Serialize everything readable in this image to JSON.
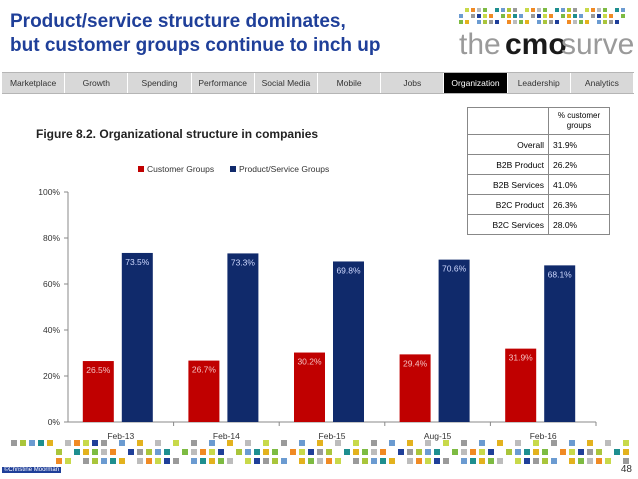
{
  "header": {
    "title_line1": "Product/service structure dominates,",
    "title_line2": "but customer groups continue to inch up",
    "logo_prefix": "the",
    "logo_bold": "cmo",
    "logo_suffix": "survey"
  },
  "nav": {
    "items": [
      {
        "label": "Marketplace",
        "active": false
      },
      {
        "label": "Growth",
        "active": false
      },
      {
        "label": "Spending",
        "active": false
      },
      {
        "label": "Performance",
        "active": false
      },
      {
        "label": "Social Media",
        "active": false
      },
      {
        "label": "Mobile",
        "active": false
      },
      {
        "label": "Jobs",
        "active": false
      },
      {
        "label": "Organization",
        "active": true
      },
      {
        "label": "Leadership",
        "active": false
      },
      {
        "label": "Analytics",
        "active": false
      }
    ]
  },
  "figure": {
    "number": "Figure 8.2.",
    "caption": "Organizational structure in companies"
  },
  "side_table": {
    "header": "% customer groups",
    "rows": [
      {
        "label": "Overall",
        "value": "31.9%"
      },
      {
        "label": "B2B Product",
        "value": "26.2%"
      },
      {
        "label": "B2B Services",
        "value": "41.0%"
      },
      {
        "label": "B2C Product",
        "value": "26.3%"
      },
      {
        "label": "B2C Services",
        "value": "28.0%"
      }
    ]
  },
  "chart_data": {
    "type": "bar",
    "title": "Organizational structure in companies",
    "categories": [
      "Feb-13",
      "Feb-14",
      "Feb-15",
      "Aug-15",
      "Feb-16"
    ],
    "series": [
      {
        "name": "Customer Groups",
        "color": "#c00000",
        "values": [
          26.5,
          26.7,
          30.2,
          29.4,
          31.9
        ],
        "labels": [
          "26.5%",
          "26.7%",
          "30.2%",
          "29.4%",
          "31.9%"
        ]
      },
      {
        "name": "Product/Service Groups",
        "color": "#102a6b",
        "values": [
          73.5,
          73.3,
          69.8,
          70.6,
          68.1
        ],
        "labels": [
          "73.5%",
          "73.3%",
          "69.8%",
          "70.6%",
          "68.1%"
        ]
      }
    ],
    "yticks": [
      "0%",
      "20%",
      "40%",
      "60%",
      "80%",
      "100%"
    ],
    "ylim": [
      0,
      100
    ],
    "legend_position": "top-center",
    "grid": false
  },
  "footer": {
    "page_number": "48",
    "copyright": "©Christine Moorman"
  }
}
